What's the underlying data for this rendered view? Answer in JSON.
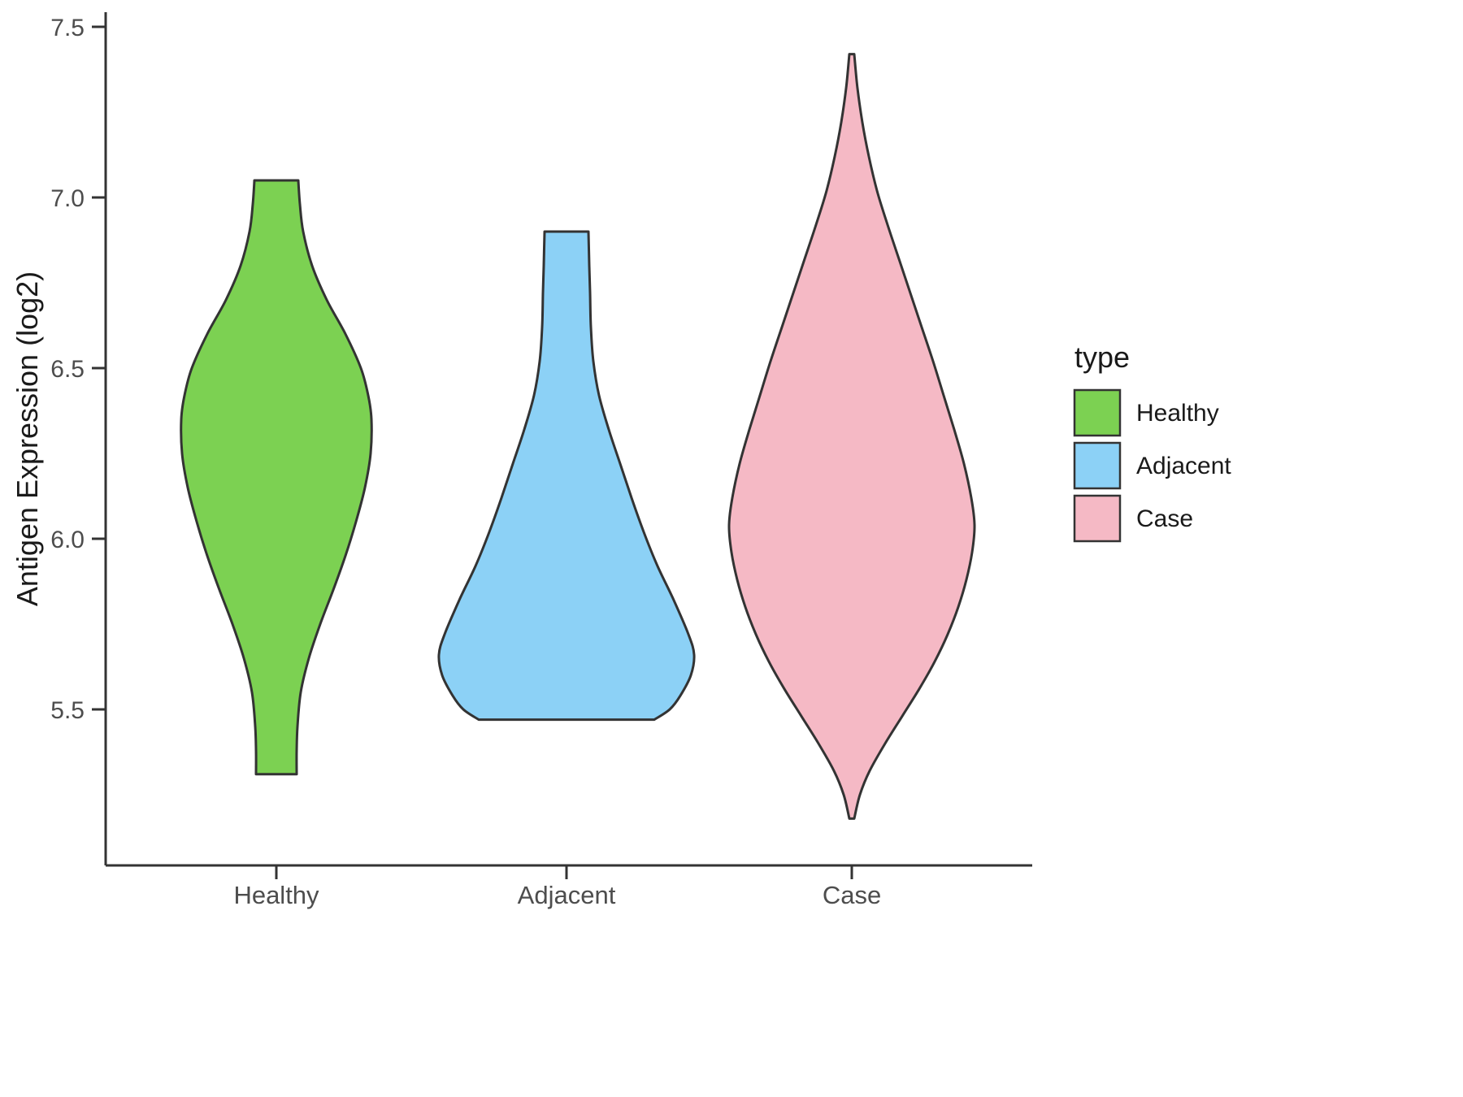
{
  "chart_data": {
    "type": "violin",
    "title": "",
    "xlabel": "",
    "ylabel": "Antigen Expression (log2)",
    "ylim": [
      5.0,
      7.5
    ],
    "grid": "off",
    "axis_color": "#333333",
    "tick_label_color": "#4D4D4D",
    "yticks": [
      "7.5",
      "7.0",
      "6.5",
      "6.0",
      "5.5"
    ],
    "ytick_values": [
      7.5,
      7.0,
      6.5,
      6.0,
      5.5
    ],
    "categories": [
      "Healthy",
      "Adjacent",
      "Case"
    ],
    "legend": {
      "title": "type",
      "position": "right",
      "entries": [
        "Healthy",
        "Adjacent",
        "Case"
      ]
    },
    "series": [
      {
        "name": "Healthy",
        "color": "#7CD152",
        "outline": "#333333",
        "value_range": [
          5.31,
          7.05
        ],
        "profile": [
          [
            7.05,
            27
          ],
          [
            6.98,
            29
          ],
          [
            6.9,
            33
          ],
          [
            6.8,
            44
          ],
          [
            6.7,
            62
          ],
          [
            6.6,
            85
          ],
          [
            6.5,
            104
          ],
          [
            6.42,
            113
          ],
          [
            6.35,
            117
          ],
          [
            6.25,
            116
          ],
          [
            6.15,
            109
          ],
          [
            6.05,
            98
          ],
          [
            5.95,
            85
          ],
          [
            5.85,
            70
          ],
          [
            5.75,
            54
          ],
          [
            5.65,
            40
          ],
          [
            5.55,
            30
          ],
          [
            5.45,
            26
          ],
          [
            5.38,
            25
          ],
          [
            5.31,
            25
          ]
        ]
      },
      {
        "name": "Adjacent",
        "color": "#8CD1F6",
        "outline": "#333333",
        "value_range": [
          5.47,
          6.9
        ],
        "profile": [
          [
            6.9,
            27
          ],
          [
            6.8,
            28
          ],
          [
            6.72,
            29
          ],
          [
            6.62,
            30
          ],
          [
            6.52,
            33
          ],
          [
            6.42,
            40
          ],
          [
            6.32,
            52
          ],
          [
            6.22,
            66
          ],
          [
            6.12,
            80
          ],
          [
            6.02,
            95
          ],
          [
            5.92,
            112
          ],
          [
            5.82,
            132
          ],
          [
            5.72,
            150
          ],
          [
            5.66,
            157
          ],
          [
            5.6,
            153
          ],
          [
            5.54,
            140
          ],
          [
            5.5,
            127
          ],
          [
            5.47,
            108
          ]
        ]
      },
      {
        "name": "Case",
        "color": "#F5B9C5",
        "outline": "#333333",
        "value_range": [
          5.18,
          7.42
        ],
        "profile": [
          [
            7.42,
            3
          ],
          [
            7.32,
            7
          ],
          [
            7.22,
            13
          ],
          [
            7.12,
            21
          ],
          [
            7.02,
            31
          ],
          [
            6.92,
            44
          ],
          [
            6.82,
            58
          ],
          [
            6.72,
            72
          ],
          [
            6.62,
            86
          ],
          [
            6.52,
            100
          ],
          [
            6.42,
            113
          ],
          [
            6.32,
            126
          ],
          [
            6.22,
            138
          ],
          [
            6.12,
            147
          ],
          [
            6.04,
            151
          ],
          [
            5.96,
            148
          ],
          [
            5.88,
            141
          ],
          [
            5.8,
            131
          ],
          [
            5.72,
            118
          ],
          [
            5.64,
            102
          ],
          [
            5.56,
            83
          ],
          [
            5.48,
            62
          ],
          [
            5.4,
            41
          ],
          [
            5.32,
            22
          ],
          [
            5.25,
            10
          ],
          [
            5.18,
            3
          ]
        ]
      }
    ]
  }
}
